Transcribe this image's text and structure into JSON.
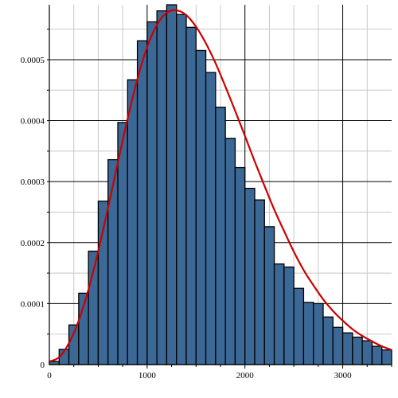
{
  "chart_data": {
    "type": "bar",
    "title": "",
    "xlabel": "",
    "ylabel": "",
    "xlim": [
      0,
      3500
    ],
    "ylim": [
      0,
      0.00059
    ],
    "grid": true,
    "legend": "none",
    "bin_width": 100,
    "bin_starts": [
      0,
      100,
      200,
      300,
      400,
      500,
      600,
      700,
      800,
      900,
      1000,
      1100,
      1200,
      1300,
      1400,
      1500,
      1600,
      1700,
      1800,
      1900,
      2000,
      2100,
      2200,
      2300,
      2400,
      2500,
      2600,
      2700,
      2800,
      2900,
      3000,
      3100,
      3200,
      3300,
      3400
    ],
    "values": [
      5e-06,
      2.5e-05,
      6.5e-05,
      0.000117,
      0.000186,
      0.000268,
      0.000336,
      0.000397,
      0.000467,
      0.000531,
      0.000562,
      0.00058,
      0.00059,
      0.000574,
      0.000553,
      0.000515,
      0.000479,
      0.000422,
      0.000371,
      0.000323,
      0.000289,
      0.00027,
      0.000226,
      0.000165,
      0.00016,
      0.000125,
      0.000102,
      0.0001,
      7.8e-05,
      6.1e-05,
      5.2e-05,
      4.5e-05,
      3.9e-05,
      3e-05,
      2.4e-05
    ],
    "x_ticks": [
      0,
      1000,
      2000,
      3000
    ],
    "x_tick_labels": [
      "0",
      "1000",
      "2000",
      "3000"
    ],
    "y_ticks": [
      0,
      0.0001,
      0.0002,
      0.0003,
      0.0004,
      0.0005
    ],
    "y_tick_labels": [
      "0",
      "0.0001",
      "0.0002",
      "0.0003",
      "0.0004",
      "0.0005"
    ],
    "density_curve": {
      "x": [
        0,
        100,
        200,
        300,
        400,
        500,
        600,
        700,
        800,
        900,
        1000,
        1100,
        1200,
        1300,
        1400,
        1500,
        1600,
        1700,
        1800,
        1900,
        2000,
        2100,
        2200,
        2300,
        2400,
        2500,
        2600,
        2700,
        2800,
        2900,
        3000,
        3100,
        3200,
        3300,
        3400,
        3500
      ],
      "y": [
        5e-06,
        1.2e-05,
        3.5e-05,
        7.2e-05,
        0.000123,
        0.000186,
        0.000257,
        0.000331,
        0.000403,
        0.000468,
        0.000521,
        0.000557,
        0.000577,
        0.000581,
        0.000573,
        0.000554,
        0.000527,
        0.000494,
        0.000456,
        0.000416,
        0.000375,
        0.000333,
        0.000293,
        0.000254,
        0.000219,
        0.000185,
        0.000155,
        0.00013,
        0.000107,
        8.8e-05,
        7.2e-05,
        5.8e-05,
        4.7e-05,
        3.8e-05,
        3e-05,
        2.4e-05
      ]
    },
    "colors": {
      "bar_fill": "#3c6896",
      "bar_stroke": "#000000",
      "curve": "#cc0000",
      "grid": "#c8c8c8"
    }
  }
}
